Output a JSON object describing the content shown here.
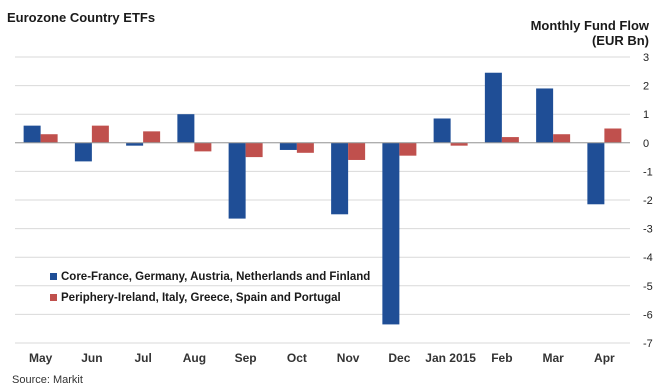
{
  "title": "Eurozone Country ETFs",
  "unit_line1": "Monthly Fund Flow",
  "unit_line2": "(EUR Bn)",
  "source": "Source: Markit",
  "colors": {
    "core": "#1f4e96",
    "periphery": "#c0504d",
    "grid": "#d9d9d9"
  },
  "chart_data": {
    "type": "bar",
    "categories": [
      "May",
      "Jun",
      "Jul",
      "Aug",
      "Sep",
      "Oct",
      "Nov",
      "Dec",
      "Jan 2015",
      "Feb",
      "Mar",
      "Apr"
    ],
    "series": [
      {
        "name": "Core-France, Germany, Austria, Netherlands and Finland",
        "values": [
          0.6,
          -0.65,
          -0.1,
          1.0,
          -2.65,
          -0.25,
          -2.5,
          -6.35,
          0.85,
          2.45,
          1.9,
          -2.15
        ]
      },
      {
        "name": "Periphery-Ireland, Italy, Greece, Spain and Portugal",
        "values": [
          0.3,
          0.6,
          0.4,
          -0.3,
          -0.5,
          -0.35,
          -0.6,
          -0.45,
          -0.1,
          0.2,
          0.3,
          0.5
        ]
      }
    ],
    "ylim": [
      -7,
      3
    ],
    "yticks": [
      "3",
      "2",
      "1",
      "0",
      "-1",
      "-2",
      "-3",
      "-4",
      "-5",
      "-6",
      "-7"
    ],
    "ytick_values": [
      3,
      2,
      1,
      0,
      -1,
      -2,
      -3,
      -4,
      -5,
      -6,
      -7
    ],
    "grid": true,
    "legend_position": "bottom-left",
    "y_axis_side": "right"
  }
}
